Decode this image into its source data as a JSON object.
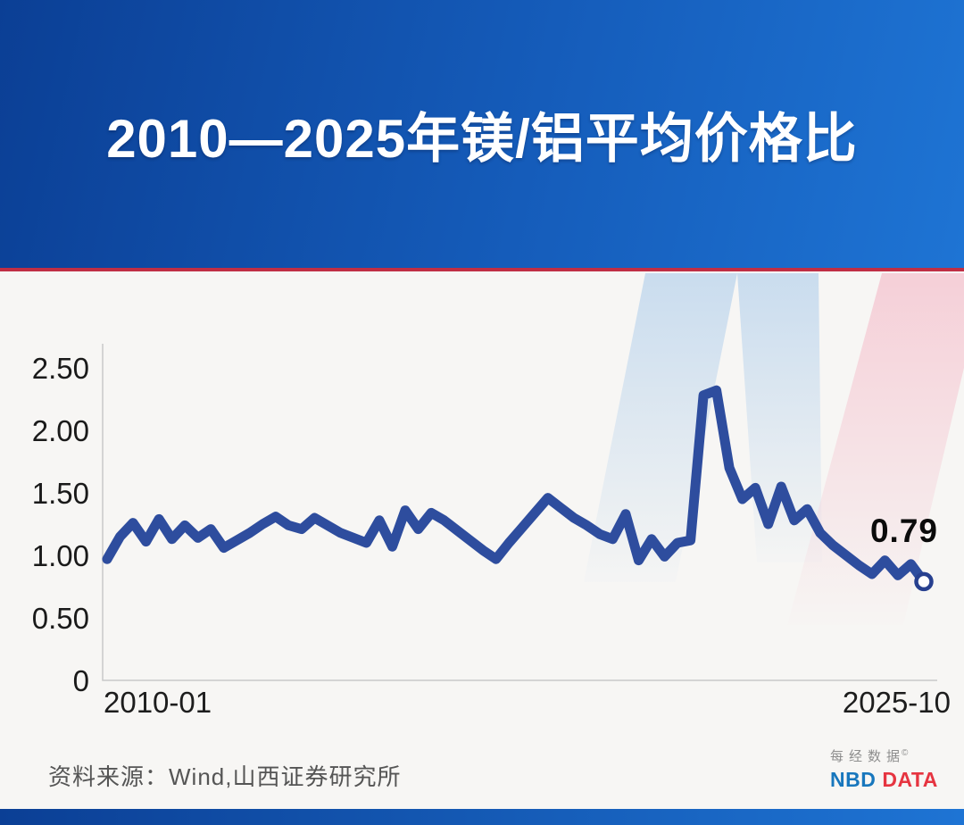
{
  "header": {
    "title": "2010—2025年镁/铝平均价格比"
  },
  "colors": {
    "banner_left": "#0b3f95",
    "banner_right": "#1e74d4",
    "divider_red": "#c02e44",
    "background": "#f7f6f4",
    "line": "#2e4d9e",
    "marker_ring": "#27408f",
    "axis": "#c9c9c9",
    "tick_text": "#1a1a1a",
    "source_text": "#555555",
    "watermark_blue": "#c7dbee",
    "watermark_pink": "#f5cdd6",
    "nbd_blue": "#1877bd",
    "nbd_red": "#e63440"
  },
  "chart_data": {
    "type": "line",
    "title": "2010—2025年镁/铝平均价格比",
    "xlabel": "",
    "ylabel": "",
    "ylim": [
      0,
      2.5
    ],
    "grid": false,
    "legend": "none",
    "y_ticks": [
      "2.50",
      "2.00",
      "1.50",
      "1.00",
      "0.50",
      "0"
    ],
    "x_tick_labels": [
      "2010-01",
      "2025-10"
    ],
    "end_label": "0.79",
    "categories": [
      "2010-01",
      "2010-04",
      "2010-07",
      "2010-10",
      "2011-01",
      "2011-04",
      "2011-07",
      "2011-10",
      "2012-01",
      "2012-04",
      "2012-07",
      "2012-10",
      "2013-01",
      "2013-04",
      "2013-07",
      "2013-10",
      "2014-01",
      "2014-04",
      "2014-07",
      "2014-10",
      "2015-01",
      "2015-04",
      "2015-07",
      "2015-10",
      "2016-01",
      "2016-04",
      "2016-07",
      "2016-10",
      "2017-01",
      "2017-04",
      "2017-07",
      "2017-10",
      "2018-01",
      "2018-04",
      "2018-07",
      "2018-10",
      "2019-01",
      "2019-04",
      "2019-07",
      "2019-10",
      "2020-01",
      "2020-04",
      "2020-07",
      "2020-10",
      "2021-01",
      "2021-04",
      "2021-07",
      "2021-10",
      "2022-01",
      "2022-04",
      "2022-07",
      "2022-10",
      "2023-01",
      "2023-04",
      "2023-07",
      "2023-10",
      "2024-01",
      "2024-04",
      "2024-07",
      "2024-10",
      "2025-01",
      "2025-04",
      "2025-07",
      "2025-10"
    ],
    "series": [
      {
        "name": "镁/铝平均价格比",
        "values": [
          0.97,
          1.15,
          1.26,
          1.11,
          1.29,
          1.13,
          1.24,
          1.14,
          1.21,
          1.06,
          1.12,
          1.18,
          1.25,
          1.31,
          1.24,
          1.21,
          1.3,
          1.24,
          1.18,
          1.14,
          1.1,
          1.28,
          1.07,
          1.36,
          1.21,
          1.34,
          1.28,
          1.2,
          1.12,
          1.04,
          0.97,
          1.1,
          1.22,
          1.34,
          1.46,
          1.38,
          1.3,
          1.24,
          1.17,
          1.13,
          1.33,
          0.96,
          1.13,
          0.99,
          1.1,
          1.12,
          2.28,
          2.32,
          1.7,
          1.45,
          1.54,
          1.25,
          1.55,
          1.28,
          1.37,
          1.18,
          1.08,
          1.0,
          0.92,
          0.85,
          0.96,
          0.84,
          0.93,
          0.79
        ]
      }
    ]
  },
  "footer": {
    "source": "资料来源：Wind,山西证券研究所",
    "logo": {
      "cn": "每经数据",
      "copyright": "©",
      "nbd": "NBD",
      "data": "DATA"
    }
  }
}
